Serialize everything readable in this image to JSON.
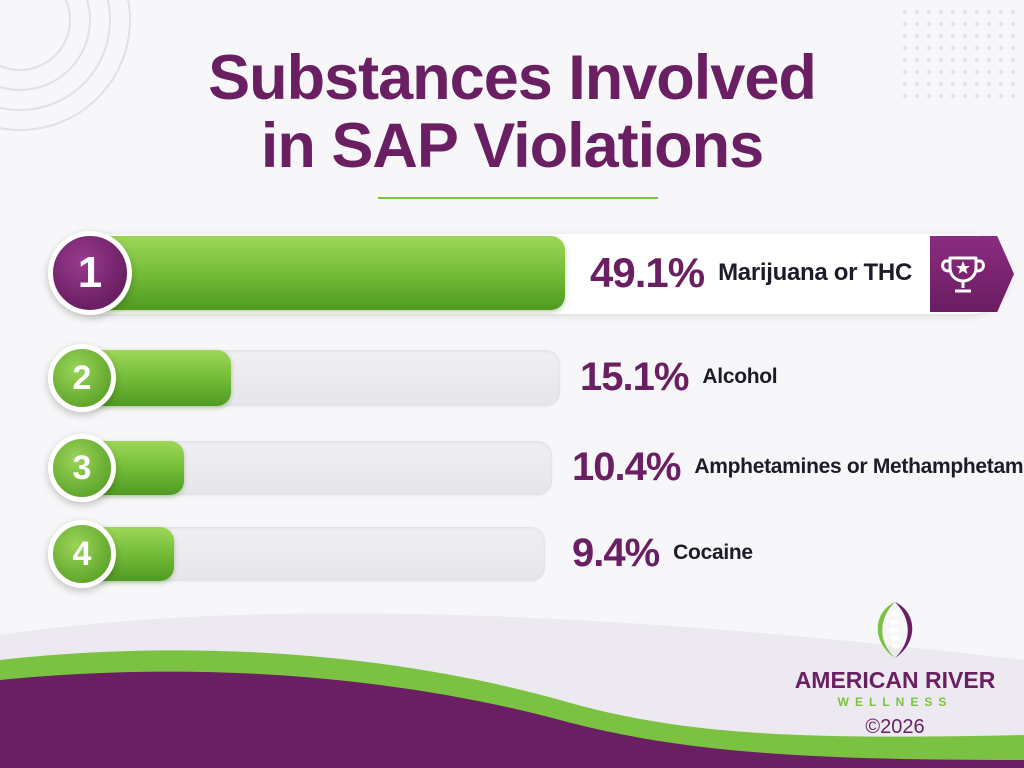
{
  "title": {
    "line1": "Substances Involved",
    "line2": "in SAP Violations"
  },
  "colors": {
    "purple": "#6b1f63",
    "green": "#7cc242",
    "track": "#ebeaee"
  },
  "chart_data": {
    "type": "bar",
    "title": "Substances Involved in SAP Violations",
    "orientation": "horizontal",
    "categories": [
      "Marijuana or THC",
      "Alcohol",
      "Amphetamines or Methamphetamine",
      "Cocaine"
    ],
    "values": [
      49.1,
      15.1,
      10.4,
      9.4
    ],
    "ranks": [
      "1",
      "2",
      "3",
      "4"
    ],
    "value_labels": [
      "49.1%",
      "15.1%",
      "10.4%",
      "9.4%"
    ],
    "unit": "%"
  },
  "icons": {
    "winner": "trophy-icon",
    "logo": "spine-leaf-logo-icon"
  },
  "brand": {
    "name": "AMERICAN RIVER",
    "sub": "WELLNESS",
    "copyright": "©2026"
  }
}
